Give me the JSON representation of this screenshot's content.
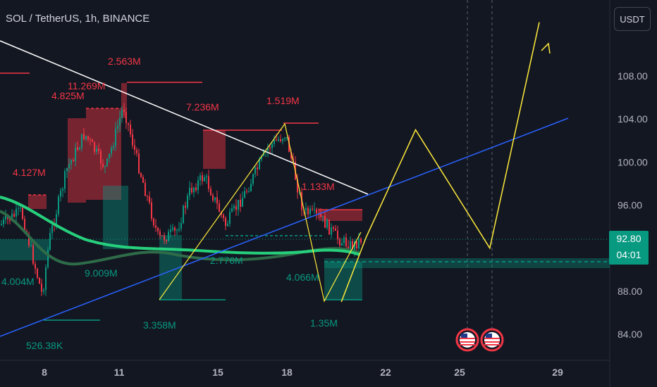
{
  "header": {
    "title": "SOL / TetherUS, 1h, BINANCE"
  },
  "currency_button": {
    "label": "USDT"
  },
  "price_badge": {
    "price": "92.80",
    "countdown": "04:01"
  },
  "colors": {
    "bg": "#131722",
    "bull": "#089981",
    "bear": "#f23645",
    "trend_white": "#ffffff",
    "trend_blue": "#2962ff",
    "projection": "#ffeb3b",
    "ma_light": "#26d07c",
    "ma_dark": "#2e6b48"
  },
  "chart_data": {
    "type": "line",
    "title": "SOL / TetherUS, 1h, BINANCE",
    "x_ticks": [
      "8",
      "11",
      "15",
      "18",
      "22",
      "25",
      "29"
    ],
    "y_ticks": [
      "84.00",
      "88.00",
      "92.00",
      "96.00",
      "100.00",
      "104.00",
      "108.00"
    ],
    "ylim": [
      82,
      115
    ],
    "current_price": 92.8,
    "volume_labels_red": [
      "2.563M",
      "11.269M",
      "4.825M",
      "7.236M",
      "1.519M",
      "4.127M",
      "1.133M"
    ],
    "volume_labels_green": [
      "9.009M",
      "2.776M",
      "4.004M",
      "4.066M",
      "3.358M",
      "1.35M",
      "526.38K"
    ],
    "projection_path": [
      {
        "x": "20",
        "y": 87
      },
      {
        "x": "21",
        "y": 93
      },
      {
        "x": "23",
        "y": 103
      },
      {
        "x": "26",
        "y": 92
      },
      {
        "x": "28",
        "y": 113
      }
    ],
    "event_markers": [
      "us-flag-icon",
      "us-flag-icon"
    ],
    "grid": false
  }
}
